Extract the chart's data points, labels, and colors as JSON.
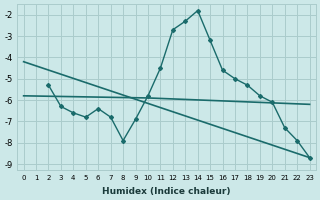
{
  "xlabel": "Humidex (Indice chaleur)",
  "bg_color": "#cce8e8",
  "grid_color": "#aacccc",
  "line_color": "#1a6b6b",
  "xlim": [
    -0.5,
    23.5
  ],
  "ylim": [
    -9.3,
    -1.5
  ],
  "yticks": [
    -9,
    -8,
    -7,
    -6,
    -5,
    -4,
    -3,
    -2
  ],
  "xticks": [
    0,
    1,
    2,
    3,
    4,
    5,
    6,
    7,
    8,
    9,
    10,
    11,
    12,
    13,
    14,
    15,
    16,
    17,
    18,
    19,
    20,
    21,
    22,
    23
  ],
  "series": [
    {
      "x": [
        0,
        23
      ],
      "y": [
        -4.2,
        -8.7
      ],
      "marker": false,
      "linewidth": 1.2
    },
    {
      "x": [
        0,
        10,
        23
      ],
      "y": [
        -5.8,
        -5.9,
        -6.2
      ],
      "marker": false,
      "linewidth": 1.2
    },
    {
      "x": [
        2,
        3,
        4,
        5,
        6,
        7,
        8,
        9,
        10,
        11,
        12,
        13,
        14,
        15,
        16,
        17,
        18,
        19,
        20,
        21,
        22,
        23
      ],
      "y": [
        -5.3,
        -6.3,
        -6.6,
        -6.8,
        -6.4,
        -6.8,
        -7.9,
        -6.9,
        -5.8,
        -4.5,
        -2.7,
        -2.3,
        -1.8,
        -3.2,
        -4.6,
        -5.0,
        -5.3,
        -5.8,
        -6.1,
        -7.3,
        -7.9,
        -8.7
      ],
      "marker": true,
      "linewidth": 1.0
    }
  ]
}
